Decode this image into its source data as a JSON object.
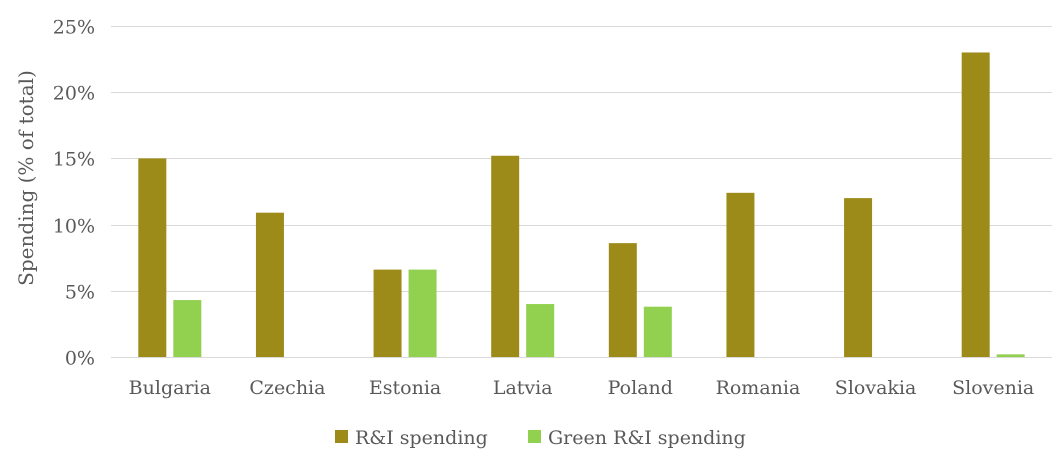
{
  "chart_data": {
    "type": "bar",
    "title": "",
    "xlabel": "",
    "ylabel": "Spending (% of total)",
    "ylim": [
      0,
      25
    ],
    "yticks": [
      0,
      5,
      10,
      15,
      20,
      25
    ],
    "ytick_labels": [
      "0%",
      "5%",
      "10%",
      "15%",
      "20%",
      "25%"
    ],
    "grid": "horizontal",
    "legend_position": "bottom",
    "categories": [
      "Bulgaria",
      "Czechia",
      "Estonia",
      "Latvia",
      "Poland",
      "Romania",
      "Slovakia",
      "Slovenia"
    ],
    "series": [
      {
        "name": "R&I spending",
        "color": "#9c8b18",
        "values": [
          15.0,
          10.9,
          6.6,
          15.2,
          8.6,
          12.4,
          12.0,
          23.0
        ]
      },
      {
        "name": "Green R&I spending",
        "color": "#92d050",
        "values": [
          4.3,
          0,
          6.6,
          4.0,
          3.8,
          0,
          0,
          0.2
        ]
      }
    ]
  }
}
